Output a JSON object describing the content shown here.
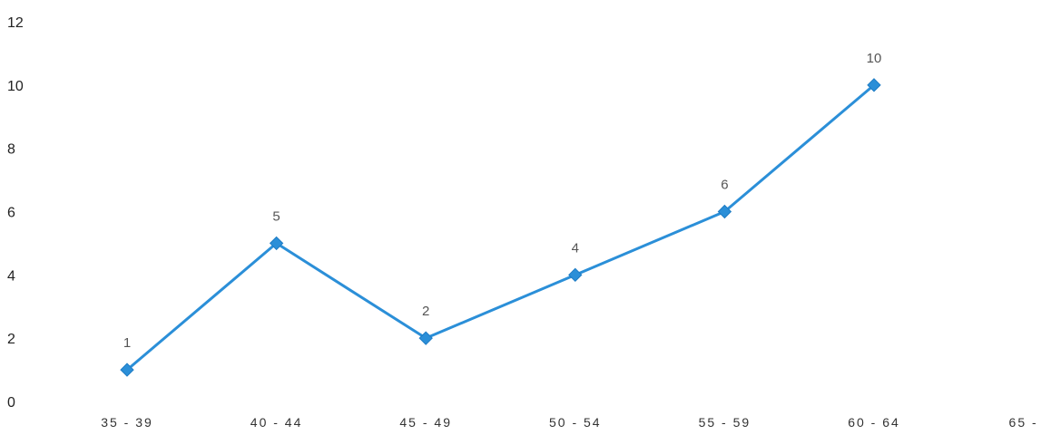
{
  "chart_data": {
    "type": "line",
    "categories": [
      "35-39",
      "40-44",
      "45-49",
      "50-54",
      "55-59",
      "60-64",
      "65-"
    ],
    "series": [
      {
        "values": [
          1,
          5,
          2,
          4,
          6,
          10,
          null
        ],
        "color": "#2b8fd8"
      }
    ],
    "data_labels": [
      "1",
      "5",
      "2",
      "4",
      "6",
      "10",
      ""
    ],
    "y_ticks": [
      "0",
      "2",
      "4",
      "6",
      "8",
      "10",
      "12"
    ],
    "ylim": [
      0,
      12
    ],
    "grid": false,
    "legend": "none",
    "marker": "diamond"
  }
}
